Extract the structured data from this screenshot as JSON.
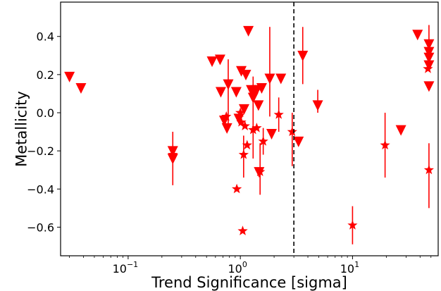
{
  "chart_data": {
    "type": "scatter",
    "xlabel": "Trend Significance [sigma]",
    "ylabel": "Metallicity",
    "xscale": "log",
    "xlim": [
      0.025,
      58
    ],
    "ylim": [
      -0.75,
      0.58
    ],
    "xticks": [
      {
        "value": 0.1,
        "base": "10",
        "exp": "−1"
      },
      {
        "value": 1,
        "base": "10",
        "exp": "0"
      },
      {
        "value": 10,
        "base": "10",
        "exp": "1"
      }
    ],
    "yticks": [
      0.4,
      0.2,
      0.0,
      -0.2,
      -0.4,
      -0.6
    ],
    "ytick_labels": [
      "0.4",
      "0.2",
      "0.0",
      "−0.2",
      "−0.4",
      "−0.6"
    ],
    "threshold_x": 3,
    "color": "#ff0000",
    "upper_limits": [
      {
        "x": 0.03,
        "y": 0.19
      },
      {
        "x": 0.038,
        "y": 0.13
      },
      {
        "x": 0.25,
        "y": -0.2
      },
      {
        "x": 0.25,
        "y": -0.24
      },
      {
        "x": 0.56,
        "y": 0.27
      },
      {
        "x": 0.66,
        "y": 0.28
      },
      {
        "x": 0.67,
        "y": 0.11
      },
      {
        "x": 0.72,
        "y": -0.04
      },
      {
        "x": 0.76,
        "y": -0.08
      },
      {
        "x": 0.78,
        "y": 0.15,
        "yerr": [
          0.22,
          0.13
        ]
      },
      {
        "x": 0.92,
        "y": 0.11
      },
      {
        "x": 0.97,
        "y": -0.03
      },
      {
        "x": 1.02,
        "y": 0.22
      },
      {
        "x": 1.08,
        "y": 0.02
      },
      {
        "x": 1.12,
        "y": 0.2
      },
      {
        "x": 1.18,
        "y": 0.43
      },
      {
        "x": 1.25,
        "y": 0.12
      },
      {
        "x": 1.3,
        "y": 0.08
      },
      {
        "x": 1.35,
        "y": 0.11
      },
      {
        "x": 1.4,
        "y": 0.12
      },
      {
        "x": 1.45,
        "y": 0.04
      },
      {
        "x": 1.47,
        "y": -0.31
      },
      {
        "x": 1.55,
        "y": 0.13
      },
      {
        "x": 1.83,
        "y": 0.18,
        "yerr": [
          0.2,
          0.27
        ]
      },
      {
        "x": 1.9,
        "y": -0.11
      },
      {
        "x": 2.3,
        "y": 0.18
      },
      {
        "x": 3.3,
        "y": -0.15
      },
      {
        "x": 3.6,
        "y": 0.3,
        "yerr": [
          0.15,
          0.15
        ]
      },
      {
        "x": 4.9,
        "y": 0.04,
        "yerr": [
          0.04,
          0.08
        ]
      },
      {
        "x": 27,
        "y": -0.09
      },
      {
        "x": 38,
        "y": 0.41
      },
      {
        "x": 48,
        "y": 0.36
      },
      {
        "x": 48,
        "y": 0.32,
        "yerr": [
          0.04,
          0.14
        ]
      },
      {
        "x": 48,
        "y": 0.29
      },
      {
        "x": 48,
        "y": 0.25
      },
      {
        "x": 48,
        "y": 0.14
      }
    ],
    "detections": [
      {
        "x": 0.25,
        "y": -0.22,
        "yerr": [
          0.16,
          0.12
        ]
      },
      {
        "x": 0.75,
        "y": -0.02
      },
      {
        "x": 0.93,
        "y": -0.4
      },
      {
        "x": 1.0,
        "y": 0.0
      },
      {
        "x": 1.02,
        "y": -0.05
      },
      {
        "x": 1.05,
        "y": -0.62
      },
      {
        "x": 1.07,
        "y": -0.22,
        "yerr": [
          0.12,
          0.1
        ]
      },
      {
        "x": 1.1,
        "y": -0.07
      },
      {
        "x": 1.15,
        "y": -0.17
      },
      {
        "x": 1.3,
        "y": -0.09,
        "yerr": [
          0.15,
          0.28
        ]
      },
      {
        "x": 1.4,
        "y": -0.08
      },
      {
        "x": 1.5,
        "y": -0.31,
        "yerr": [
          0.12,
          0.15
        ]
      },
      {
        "x": 1.6,
        "y": -0.15,
        "yerr": [
          0.07,
          0.07
        ]
      },
      {
        "x": 2.2,
        "y": -0.01,
        "yerr": [
          0.09,
          0.09
        ]
      },
      {
        "x": 2.9,
        "y": -0.1,
        "yerr": [
          0.18,
          0.1
        ]
      },
      {
        "x": 10,
        "y": -0.59,
        "yerr": [
          0.1,
          0.1
        ]
      },
      {
        "x": 19.5,
        "y": -0.17,
        "yerr": [
          0.17,
          0.17
        ]
      },
      {
        "x": 47,
        "y": 0.23
      },
      {
        "x": 48,
        "y": -0.3,
        "yerr": [
          0.2,
          0.14
        ]
      }
    ]
  }
}
